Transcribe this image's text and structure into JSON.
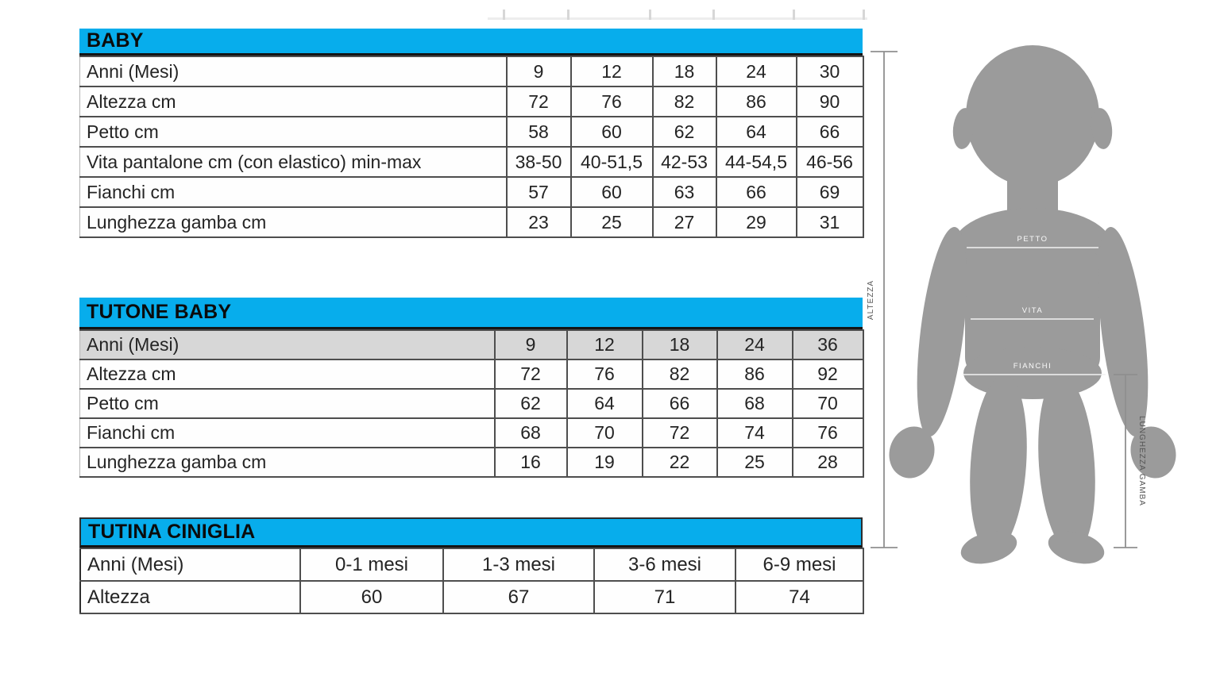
{
  "page": {
    "background": "#ffffff"
  },
  "colors": {
    "header_bg": "#07adec",
    "header_text": "#0b0b0b",
    "highlight_row_bg": "#d7d7d7",
    "table_border": "#4e4e4e",
    "text": "#242424",
    "silhouette": "#9b9b9b",
    "measure_line": "#8f8f8f",
    "body_line": "#f2f2f2"
  },
  "tables": [
    {
      "id": "baby",
      "title": "BABY",
      "rows": [
        {
          "label": "Anni (Mesi)",
          "values": [
            "9",
            "12",
            "18",
            "24",
            "30"
          ]
        },
        {
          "label": "Altezza cm",
          "values": [
            "72",
            "76",
            "82",
            "86",
            "90"
          ]
        },
        {
          "label": "Petto cm",
          "values": [
            "58",
            "60",
            "62",
            "64",
            "66"
          ]
        },
        {
          "label": "Vita pantalone cm (con elastico) min-max",
          "values": [
            "38-50",
            "40-51,5",
            "42-53",
            "44-54,5",
            "46-56"
          ]
        },
        {
          "label": "Fianchi cm",
          "values": [
            "57",
            "60",
            "63",
            "66",
            "69"
          ]
        },
        {
          "label": "Lunghezza gamba cm",
          "values": [
            "23",
            "25",
            "27",
            "29",
            "31"
          ]
        }
      ]
    },
    {
      "id": "tutone-baby",
      "title": "TUTONE BABY",
      "rows": [
        {
          "label": "Anni (Mesi)",
          "values": [
            "9",
            "12",
            "18",
            "24",
            "36"
          ],
          "highlight": true
        },
        {
          "label": "Altezza cm",
          "values": [
            "72",
            "76",
            "82",
            "86",
            "92"
          ]
        },
        {
          "label": "Petto cm",
          "values": [
            "62",
            "64",
            "66",
            "68",
            "70"
          ]
        },
        {
          "label": "Fianchi cm",
          "values": [
            "68",
            "70",
            "72",
            "74",
            "76"
          ]
        },
        {
          "label": "Lunghezza gamba cm",
          "values": [
            "16",
            "19",
            "22",
            "25",
            "28"
          ]
        }
      ]
    },
    {
      "id": "tutina-ciniglia",
      "title": "TUTINA CINIGLIA",
      "rows": [
        {
          "label": "Anni (Mesi)",
          "values": [
            "0-1 mesi",
            "1-3 mesi",
            "3-6 mesi",
            "6-9 mesi"
          ]
        },
        {
          "label": "Altezza",
          "values": [
            "60",
            "67",
            "71",
            "74"
          ]
        }
      ]
    }
  ],
  "figure": {
    "labels": {
      "petto": "PETTO",
      "vita": "VITA",
      "fianchi": "FIANCHI",
      "altezza": "ALTEZZA",
      "lunghezza_gamba": "LUNGHEZZA GAMBA"
    }
  }
}
